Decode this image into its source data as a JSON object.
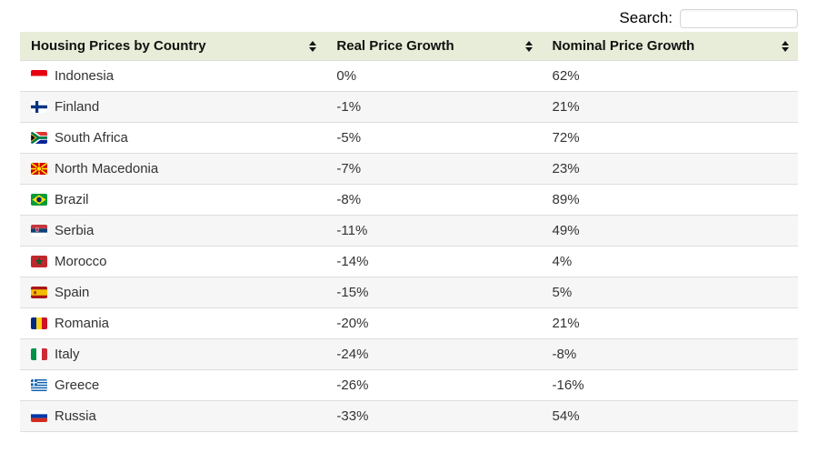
{
  "search": {
    "label": "Search:",
    "value": "",
    "placeholder": ""
  },
  "table": {
    "columns": [
      {
        "id": "country",
        "label": "Housing Prices by Country",
        "sortable": true
      },
      {
        "id": "real",
        "label": "Real Price Growth",
        "sortable": true
      },
      {
        "id": "nominal",
        "label": "Nominal Price Growth",
        "sortable": true
      }
    ],
    "rows": [
      {
        "country": "Indonesia",
        "flag": "indonesia",
        "real": "0%",
        "nominal": "62%"
      },
      {
        "country": "Finland",
        "flag": "finland",
        "real": "-1%",
        "nominal": "21%"
      },
      {
        "country": "South Africa",
        "flag": "south-africa",
        "real": "-5%",
        "nominal": "72%"
      },
      {
        "country": "North Macedonia",
        "flag": "north-macedonia",
        "real": "-7%",
        "nominal": "23%"
      },
      {
        "country": "Brazil",
        "flag": "brazil",
        "real": "-8%",
        "nominal": "89%"
      },
      {
        "country": "Serbia",
        "flag": "serbia",
        "real": "-11%",
        "nominal": "49%"
      },
      {
        "country": "Morocco",
        "flag": "morocco",
        "real": "-14%",
        "nominal": "4%"
      },
      {
        "country": "Spain",
        "flag": "spain",
        "real": "-15%",
        "nominal": "5%"
      },
      {
        "country": "Romania",
        "flag": "romania",
        "real": "-20%",
        "nominal": "21%"
      },
      {
        "country": "Italy",
        "flag": "italy",
        "real": "-24%",
        "nominal": "-8%"
      },
      {
        "country": "Greece",
        "flag": "greece",
        "real": "-26%",
        "nominal": "-16%"
      },
      {
        "country": "Russia",
        "flag": "russia",
        "real": "-33%",
        "nominal": "54%"
      }
    ]
  },
  "colors": {
    "header_bg": "#e7edd8",
    "header_text": "#111111",
    "body_text": "#333333",
    "row_alt_bg": "#f6f6f6",
    "row_border": "#dddddd"
  }
}
